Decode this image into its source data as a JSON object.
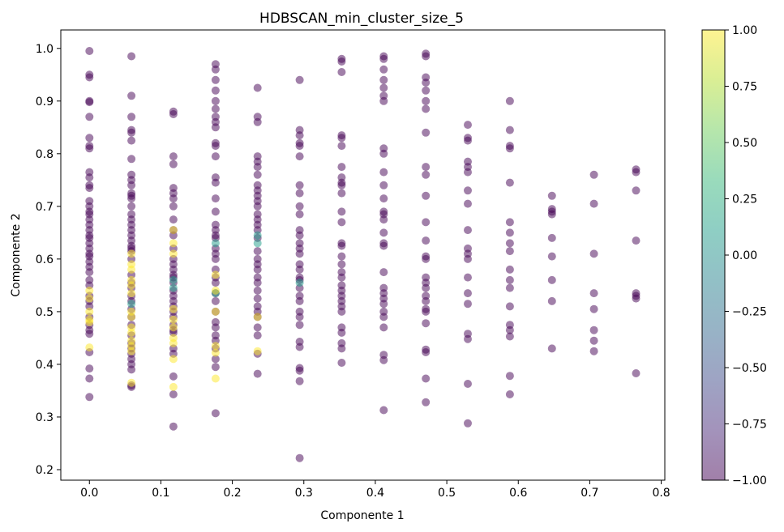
{
  "chart_data": {
    "type": "scatter",
    "title": "HDBSCAN_min_cluster_size_5",
    "xlabel": "Componente 1",
    "ylabel": "Componente 2",
    "xlim": [
      -0.04,
      0.805
    ],
    "ylim": [
      0.18,
      1.035
    ],
    "xticks": [
      0.0,
      0.1,
      0.2,
      0.3,
      0.4,
      0.5,
      0.6,
      0.7,
      0.8
    ],
    "xtick_labels": [
      "0.0",
      "0.1",
      "0.2",
      "0.3",
      "0.4",
      "0.5",
      "0.6",
      "0.7",
      "0.8"
    ],
    "yticks": [
      0.2,
      0.3,
      0.4,
      0.5,
      0.6,
      0.7,
      0.8,
      0.9,
      1.0
    ],
    "ytick_labels": [
      "0.2",
      "0.3",
      "0.4",
      "0.5",
      "0.6",
      "0.7",
      "0.8",
      "0.9",
      "1.0"
    ],
    "grid": false,
    "colormap": "viridis",
    "marker_alpha": 0.5,
    "colorbar": {
      "range": [
        -1.0,
        1.0
      ],
      "ticks": [
        -1.0,
        -0.75,
        -0.5,
        -0.25,
        0.0,
        0.25,
        0.5,
        0.75,
        1.0
      ],
      "tick_labels": [
        "−1.00",
        "−0.75",
        "−0.50",
        "−0.25",
        "0.00",
        "0.25",
        "0.50",
        "0.75",
        "1.00"
      ],
      "colors": [
        "#440154",
        "#482878",
        "#3e4989",
        "#31688e",
        "#26828e",
        "#1f9e89",
        "#35b779",
        "#6ece58",
        "#b5de2b",
        "#fde725"
      ]
    },
    "columns": [
      {
        "x": 0.0,
        "noise": [
          0.995,
          0.95,
          0.945,
          0.9,
          0.898,
          0.87,
          0.83,
          0.815,
          0.81,
          0.765,
          0.755,
          0.74,
          0.735,
          0.71,
          0.7,
          0.69,
          0.685,
          0.675,
          0.665,
          0.655,
          0.645,
          0.64,
          0.63,
          0.62,
          0.61,
          0.605,
          0.595,
          0.585,
          0.575,
          0.56,
          0.55,
          0.53,
          0.52,
          0.51,
          0.49,
          0.475,
          0.465,
          0.458,
          0.423,
          0.392,
          0.373,
          0.338
        ],
        "c1": [
          0.54,
          0.525,
          0.5,
          0.485,
          0.48,
          0.432
        ]
      },
      {
        "x": 0.0588,
        "noise": [
          0.985,
          0.91,
          0.87,
          0.845,
          0.84,
          0.825,
          0.79,
          0.76,
          0.75,
          0.74,
          0.725,
          0.72,
          0.715,
          0.7,
          0.685,
          0.675,
          0.665,
          0.655,
          0.645,
          0.635,
          0.625,
          0.62,
          0.615,
          0.6,
          0.57,
          0.555,
          0.545,
          0.53,
          0.52,
          0.505,
          0.49,
          0.475,
          0.455,
          0.44,
          0.43,
          0.42,
          0.41,
          0.4,
          0.39,
          0.36,
          0.357
        ],
        "c1": [
          0.61,
          0.59,
          0.58,
          0.56,
          0.55,
          0.535,
          0.5,
          0.49,
          0.47,
          0.46,
          0.445,
          0.435,
          0.425,
          0.365
        ],
        "c0": [
          0.515
        ]
      },
      {
        "x": 0.1176,
        "noise": [
          0.88,
          0.875,
          0.795,
          0.78,
          0.735,
          0.725,
          0.715,
          0.7,
          0.675,
          0.655,
          0.645,
          0.62,
          0.6,
          0.59,
          0.58,
          0.57,
          0.565,
          0.555,
          0.54,
          0.53,
          0.52,
          0.51,
          0.5,
          0.49,
          0.475,
          0.465,
          0.46,
          0.43,
          0.42,
          0.377,
          0.343,
          0.282
        ],
        "c1": [
          0.655,
          0.63,
          0.61,
          0.505,
          0.485,
          0.47,
          0.45,
          0.44,
          0.41,
          0.357
        ],
        "c0": [
          0.56,
          0.545
        ]
      },
      {
        "x": 0.1765,
        "noise": [
          0.97,
          0.96,
          0.94,
          0.92,
          0.9,
          0.885,
          0.87,
          0.86,
          0.85,
          0.82,
          0.815,
          0.795,
          0.755,
          0.745,
          0.715,
          0.69,
          0.665,
          0.655,
          0.645,
          0.64,
          0.62,
          0.61,
          0.6,
          0.58,
          0.565,
          0.555,
          0.535,
          0.52,
          0.5,
          0.48,
          0.47,
          0.455,
          0.445,
          0.43,
          0.41,
          0.395,
          0.307
        ],
        "c1": [
          0.57,
          0.54,
          0.5,
          0.435,
          0.422,
          0.373
        ],
        "c0": [
          0.63,
          0.535
        ]
      },
      {
        "x": 0.2353,
        "noise": [
          0.925,
          0.87,
          0.86,
          0.795,
          0.785,
          0.775,
          0.76,
          0.74,
          0.73,
          0.72,
          0.71,
          0.7,
          0.685,
          0.675,
          0.665,
          0.655,
          0.64,
          0.615,
          0.6,
          0.59,
          0.58,
          0.565,
          0.555,
          0.54,
          0.525,
          0.51,
          0.5,
          0.49,
          0.47,
          0.455,
          0.42,
          0.382
        ],
        "c1": [
          0.49,
          0.425
        ],
        "c0": [
          0.645,
          0.63
        ]
      },
      {
        "x": 0.2941,
        "noise": [
          0.94,
          0.845,
          0.835,
          0.82,
          0.815,
          0.795,
          0.74,
          0.725,
          0.7,
          0.685,
          0.655,
          0.645,
          0.63,
          0.62,
          0.61,
          0.59,
          0.58,
          0.565,
          0.56,
          0.545,
          0.53,
          0.52,
          0.5,
          0.49,
          0.475,
          0.443,
          0.433,
          0.393,
          0.388,
          0.368,
          0.222
        ],
        "c0": [
          0.555
        ]
      },
      {
        "x": 0.3529,
        "noise": [
          0.98,
          0.975,
          0.955,
          0.835,
          0.83,
          0.815,
          0.775,
          0.755,
          0.745,
          0.74,
          0.725,
          0.69,
          0.67,
          0.63,
          0.625,
          0.605,
          0.59,
          0.575,
          0.565,
          0.55,
          0.54,
          0.53,
          0.52,
          0.51,
          0.5,
          0.47,
          0.46,
          0.44,
          0.43,
          0.403
        ]
      },
      {
        "x": 0.4118,
        "noise": [
          0.985,
          0.98,
          0.96,
          0.94,
          0.925,
          0.91,
          0.9,
          0.81,
          0.8,
          0.765,
          0.74,
          0.715,
          0.69,
          0.685,
          0.675,
          0.65,
          0.63,
          0.625,
          0.575,
          0.545,
          0.535,
          0.525,
          0.515,
          0.5,
          0.49,
          0.47,
          0.418,
          0.408,
          0.313
        ]
      },
      {
        "x": 0.4706,
        "noise": [
          0.99,
          0.985,
          0.945,
          0.935,
          0.92,
          0.9,
          0.885,
          0.84,
          0.775,
          0.76,
          0.72,
          0.67,
          0.635,
          0.605,
          0.6,
          0.565,
          0.555,
          0.545,
          0.53,
          0.52,
          0.505,
          0.5,
          0.478,
          0.428,
          0.423,
          0.373,
          0.328
        ]
      },
      {
        "x": 0.5294,
        "noise": [
          0.855,
          0.83,
          0.825,
          0.785,
          0.775,
          0.765,
          0.73,
          0.705,
          0.655,
          0.62,
          0.61,
          0.6,
          0.565,
          0.535,
          0.515,
          0.458,
          0.448,
          0.363,
          0.288
        ]
      },
      {
        "x": 0.5882,
        "noise": [
          0.9,
          0.845,
          0.815,
          0.81,
          0.745,
          0.67,
          0.65,
          0.63,
          0.615,
          0.58,
          0.56,
          0.545,
          0.51,
          0.475,
          0.465,
          0.453,
          0.378,
          0.343
        ]
      },
      {
        "x": 0.6471,
        "noise": [
          0.72,
          0.695,
          0.69,
          0.685,
          0.64,
          0.605,
          0.56,
          0.52,
          0.43
        ]
      },
      {
        "x": 0.7059,
        "noise": [
          0.76,
          0.705,
          0.61,
          0.535,
          0.505,
          0.465,
          0.445,
          0.425
        ]
      },
      {
        "x": 0.7647,
        "noise": [
          0.77,
          0.765,
          0.73,
          0.635,
          0.535,
          0.53,
          0.525,
          0.383
        ]
      }
    ]
  }
}
